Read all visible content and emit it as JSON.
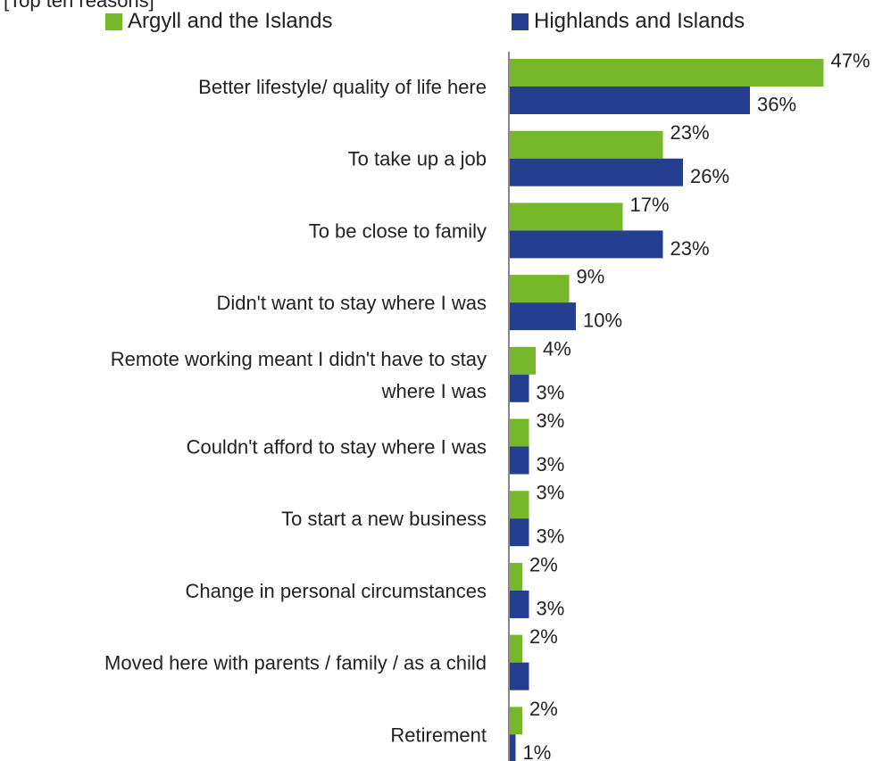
{
  "chart_data": {
    "type": "bar",
    "orientation": "horizontal",
    "subtitle": "[Top ten reasons]",
    "categories": [
      [
        "Better lifestyle/ quality of life here"
      ],
      [
        "To take up a job"
      ],
      [
        "To be close to family"
      ],
      [
        "Didn't want to stay where I was"
      ],
      [
        "Remote working meant I didn't have to stay",
        "where I was"
      ],
      [
        "Couldn't afford to stay where I was"
      ],
      [
        "To start a new business"
      ],
      [
        "Change in personal circumstances"
      ],
      [
        "Moved here with parents / family / as a child"
      ],
      [
        "Retirement"
      ]
    ],
    "series": [
      {
        "name": "Argyll and the Islands",
        "color": "#76b82a",
        "values": [
          47,
          23,
          17,
          9,
          4,
          3,
          3,
          2,
          2,
          2
        ],
        "labels": [
          "47%",
          "23%",
          "17%",
          "9%",
          "4%",
          "3%",
          "3%",
          "2%",
          "2%",
          "2%"
        ]
      },
      {
        "name": "Highlands and Islands",
        "color": "#253e8f",
        "values": [
          36,
          26,
          23,
          10,
          3,
          3,
          3,
          3,
          3,
          1
        ],
        "labels": [
          "36%",
          "26%",
          "23%",
          "10%",
          "3%",
          "3%",
          "3%",
          "3%",
          "",
          "1%"
        ]
      }
    ],
    "xlim": [
      0,
      50
    ],
    "grid": false,
    "legend_position": "top"
  }
}
